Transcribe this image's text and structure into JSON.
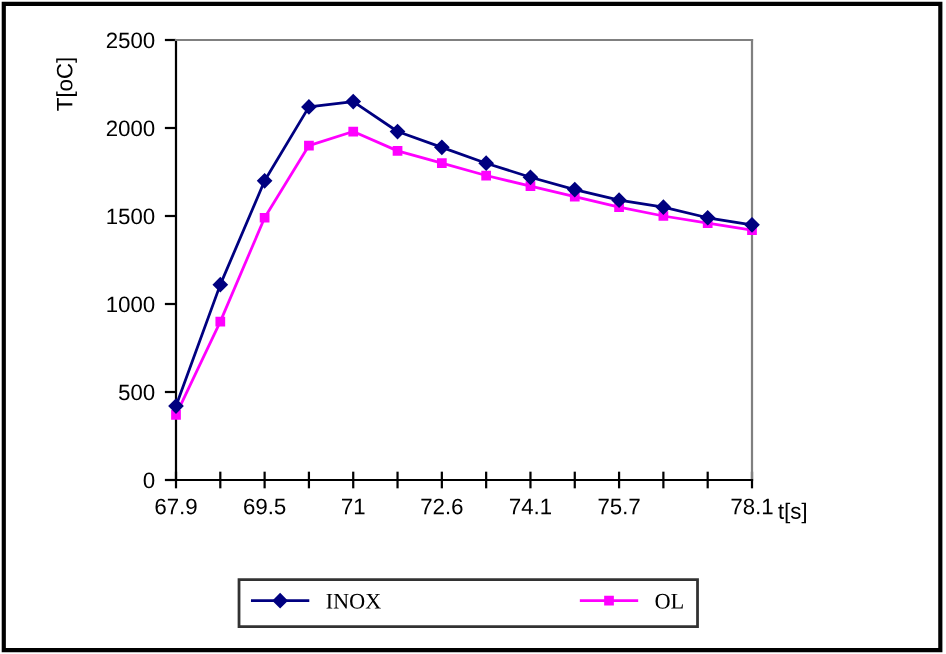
{
  "chart_data": {
    "type": "line",
    "xlabel": "t[s]",
    "ylabel": "T[oC]",
    "categories": [
      "67.9",
      null,
      "69.5",
      null,
      "71",
      null,
      "72.6",
      null,
      "74.1",
      null,
      "75.7",
      null,
      null,
      "78.1"
    ],
    "series": [
      {
        "name": "INOX",
        "color": "#000080",
        "marker": "diamond",
        "values": [
          420,
          1110,
          1700,
          2120,
          2150,
          1980,
          1890,
          1800,
          1720,
          1650,
          1590,
          1550,
          1490,
          1450
        ]
      },
      {
        "name": "OL",
        "color": "#ff00ff",
        "marker": "square",
        "values": [
          370,
          900,
          1490,
          1900,
          1980,
          1870,
          1800,
          1730,
          1670,
          1610,
          1550,
          1500,
          1460,
          1420
        ]
      }
    ],
    "ylim": [
      0,
      2500
    ],
    "yticks": [
      0,
      500,
      1000,
      1500,
      2000,
      2500
    ],
    "grid": false,
    "legend": "bottom",
    "line_style": "solid"
  }
}
